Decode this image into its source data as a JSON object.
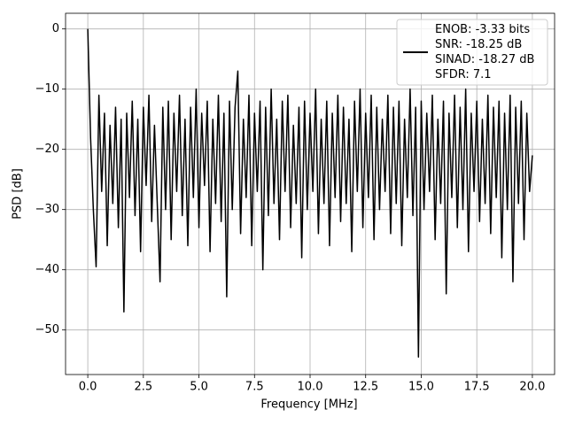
{
  "chart_data": {
    "type": "line",
    "xlabel": "Frequency [MHz]",
    "ylabel": "PSD [dB]",
    "x": [
      0,
      0.125,
      0.25,
      0.375,
      0.5,
      0.625,
      0.75,
      0.875,
      1,
      1.125,
      1.25,
      1.375,
      1.5,
      1.625,
      1.75,
      1.875,
      2,
      2.125,
      2.25,
      2.375,
      2.5,
      2.625,
      2.75,
      2.875,
      3,
      3.125,
      3.25,
      3.375,
      3.5,
      3.625,
      3.75,
      3.875,
      4,
      4.125,
      4.25,
      4.375,
      4.5,
      4.625,
      4.75,
      4.875,
      5,
      5.125,
      5.25,
      5.375,
      5.5,
      5.625,
      5.75,
      5.875,
      6,
      6.125,
      6.25,
      6.375,
      6.5,
      6.625,
      6.75,
      6.875,
      7,
      7.125,
      7.25,
      7.375,
      7.5,
      7.625,
      7.75,
      7.875,
      8,
      8.125,
      8.25,
      8.375,
      8.5,
      8.625,
      8.75,
      8.875,
      9,
      9.125,
      9.25,
      9.375,
      9.5,
      9.625,
      9.75,
      9.875,
      10,
      10.125,
      10.25,
      10.375,
      10.5,
      10.625,
      10.75,
      10.875,
      11,
      11.125,
      11.25,
      11.375,
      11.5,
      11.625,
      11.75,
      11.875,
      12,
      12.125,
      12.25,
      12.375,
      12.5,
      12.625,
      12.75,
      12.875,
      13,
      13.125,
      13.25,
      13.375,
      13.5,
      13.625,
      13.75,
      13.875,
      14,
      14.125,
      14.25,
      14.375,
      14.5,
      14.625,
      14.75,
      14.875,
      15,
      15.125,
      15.25,
      15.375,
      15.5,
      15.625,
      15.75,
      15.875,
      16,
      16.125,
      16.25,
      16.375,
      16.5,
      16.625,
      16.75,
      16.875,
      17,
      17.125,
      17.25,
      17.375,
      17.5,
      17.625,
      17.75,
      17.875,
      18,
      18.125,
      18.25,
      18.375,
      18.5,
      18.625,
      18.75,
      18.875,
      19,
      19.125,
      19.25,
      19.375,
      19.5,
      19.625,
      19.75,
      19.875,
      20
    ],
    "series": [
      {
        "name": "ENOB: -3.33 bits\nSNR: -18.25 dB\nSINAD: -18.27 dB\nSFDR: 7.1",
        "color": "#000000",
        "values": [
          0,
          -18,
          -30,
          -39.5,
          -11,
          -27,
          -14,
          -36,
          -16,
          -29,
          -13,
          -33,
          -15,
          -47,
          -14,
          -28,
          -12,
          -31,
          -15,
          -37,
          -13,
          -26,
          -11,
          -32,
          -16,
          -29,
          -42,
          -13,
          -30,
          -12,
          -35,
          -14,
          -27,
          -11,
          -31,
          -15,
          -36,
          -13,
          -28,
          -10,
          -33,
          -14,
          -26,
          -12,
          -37,
          -15,
          -29,
          -11,
          -32,
          -14,
          -44.5,
          -12,
          -30,
          -13,
          -7,
          -34,
          -15,
          -28,
          -11,
          -36,
          -14,
          -27,
          -12,
          -40,
          -13,
          -31,
          -10,
          -29,
          -15,
          -35,
          -12,
          -27,
          -11,
          -33,
          -16,
          -29,
          -13,
          -38,
          -12,
          -30,
          -14,
          -27,
          -10,
          -34,
          -15,
          -29,
          -12,
          -36,
          -14,
          -28,
          -11,
          -32,
          -13,
          -29,
          -15,
          -37,
          -12,
          -27,
          -10,
          -33,
          -14,
          -28,
          -11,
          -35,
          -13,
          -30,
          -15,
          -27,
          -11,
          -34,
          -13,
          -29,
          -12,
          -36,
          -15,
          -28,
          -10,
          -31,
          -13,
          -54.5,
          -12,
          -30,
          -14,
          -27,
          -11,
          -35,
          -15,
          -29,
          -12,
          -44,
          -14,
          -28,
          -11,
          -33,
          -13,
          -30,
          -10,
          -37,
          -14,
          -27,
          -12,
          -32,
          -15,
          -29,
          -11,
          -34,
          -13,
          -28,
          -12,
          -38,
          -14,
          -30,
          -11,
          -42,
          -13,
          -29,
          -12,
          -35,
          -14,
          -27,
          -21
        ]
      }
    ],
    "xlim": [
      -1.0,
      21.0
    ],
    "ylim": [
      -57.4,
      2.6
    ],
    "xticks": [
      {
        "value": 0,
        "label": "0.0"
      },
      {
        "value": 2.5,
        "label": "2.5"
      },
      {
        "value": 5,
        "label": "5.0"
      },
      {
        "value": 7.5,
        "label": "7.5"
      },
      {
        "value": 10,
        "label": "10.0"
      },
      {
        "value": 12.5,
        "label": "12.5"
      },
      {
        "value": 15,
        "label": "15.0"
      },
      {
        "value": 17.5,
        "label": "17.5"
      },
      {
        "value": 20,
        "label": "20.0"
      }
    ],
    "yticks": [
      {
        "value": -50,
        "label": "−50"
      },
      {
        "value": -40,
        "label": "−40"
      },
      {
        "value": -30,
        "label": "−30"
      },
      {
        "value": -20,
        "label": "−20"
      },
      {
        "value": -10,
        "label": "−10"
      },
      0
    ],
    "grid": true,
    "legend": "upper right"
  }
}
